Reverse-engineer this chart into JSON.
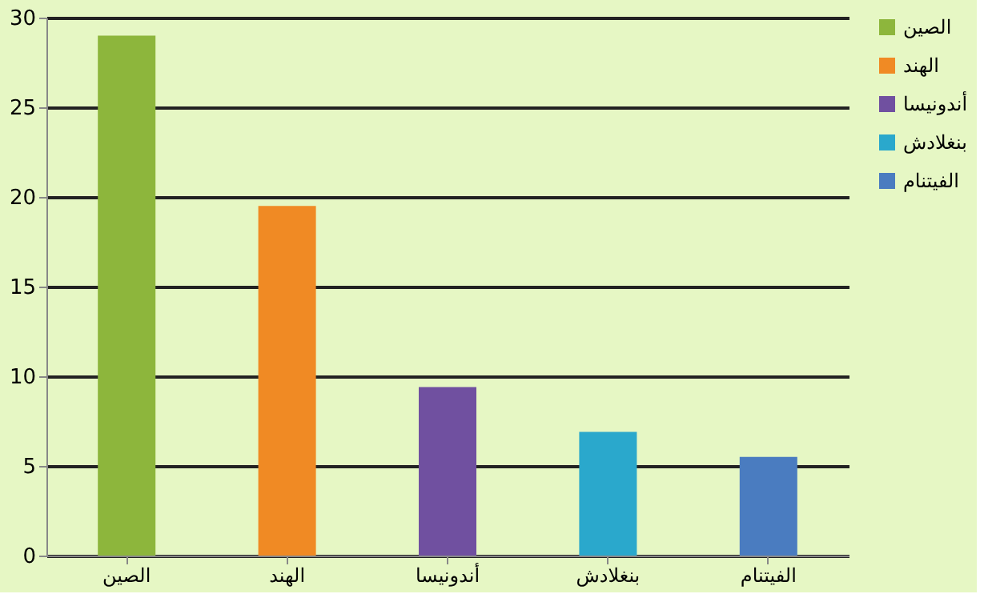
{
  "chart_data": {
    "type": "bar",
    "categories": [
      "الصين",
      "الهند",
      "أندونيسا",
      "بنغلادش",
      "الفيتنام"
    ],
    "series": [
      {
        "name": "الصين",
        "color": "#8db63c",
        "values": [
          29,
          null,
          null,
          null,
          null
        ]
      },
      {
        "name": "الهند",
        "color": "#f08a24",
        "values": [
          null,
          19.5,
          null,
          null,
          null
        ]
      },
      {
        "name": "أندونيسا",
        "color": "#7050a0",
        "values": [
          null,
          null,
          9.4,
          null,
          null
        ]
      },
      {
        "name": "بنغلادش",
        "color": "#2aa8cc",
        "values": [
          null,
          null,
          null,
          6.9,
          null
        ]
      },
      {
        "name": "الفيتنام",
        "color": "#4a7cc0",
        "values": [
          null,
          null,
          null,
          null,
          5.5
        ]
      }
    ],
    "ylim": [
      0,
      30
    ],
    "yticks": [
      0,
      5,
      10,
      15,
      20,
      25,
      30
    ],
    "grid": "y",
    "legend": "right"
  }
}
